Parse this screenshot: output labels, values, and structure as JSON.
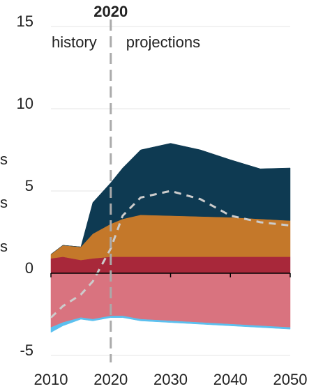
{
  "chart_data": {
    "type": "stacked_area",
    "x": [
      2010,
      2012,
      2015,
      2017,
      2020,
      2022,
      2025,
      2030,
      2035,
      2040,
      2045,
      2050
    ],
    "series": [
      {
        "color": "#a8283a",
        "values": [
          0.9,
          1.0,
          0.8,
          0.9,
          1.0,
          1.0,
          1.0,
          1.0,
          1.0,
          1.0,
          1.0,
          1.0
        ]
      },
      {
        "color": "#c4782a",
        "values": [
          0.25,
          0.7,
          0.8,
          1.5,
          2.0,
          2.3,
          2.55,
          2.5,
          2.45,
          2.4,
          2.3,
          2.2
        ]
      },
      {
        "color": "#0e3a52",
        "values": [
          0,
          0,
          0,
          1.9,
          2.5,
          3.1,
          3.95,
          4.4,
          4.05,
          3.5,
          3.05,
          3.2
        ]
      },
      {
        "color": "#d9737f",
        "values": [
          -3.3,
          -3.0,
          -2.7,
          -2.8,
          -2.6,
          -2.6,
          -2.8,
          -2.9,
          -3.0,
          -3.1,
          -3.2,
          -3.3
        ]
      },
      {
        "color": "#5bc0ef",
        "values": [
          -0.3,
          -0.2,
          -0.1,
          -0.1,
          -0.1,
          -0.1,
          -0.1,
          -0.1,
          -0.1,
          -0.1,
          -0.1,
          -0.1
        ]
      }
    ],
    "net": {
      "color": "#cccccc",
      "values": [
        -2.7,
        -2.0,
        -1.3,
        -0.5,
        1.5,
        3.5,
        4.6,
        5.0,
        4.5,
        3.5,
        3.1,
        2.9
      ]
    },
    "divider": {
      "x": 2020,
      "label": "2020"
    },
    "annotations": [
      "history",
      "projections"
    ],
    "cropped_labels": [
      {
        "text": "s",
        "color": "#c4782a"
      },
      {
        "text": "s",
        "color": "#a8283a"
      },
      {
        "text": "s",
        "color": "#e08a98"
      }
    ],
    "xlim": [
      2010,
      2050
    ],
    "xticks": [
      2010,
      2020,
      2030,
      2040,
      2050
    ],
    "ylim": [
      -5,
      15
    ],
    "yticks": [
      -5,
      0,
      5,
      10,
      15
    ],
    "grid": true
  }
}
